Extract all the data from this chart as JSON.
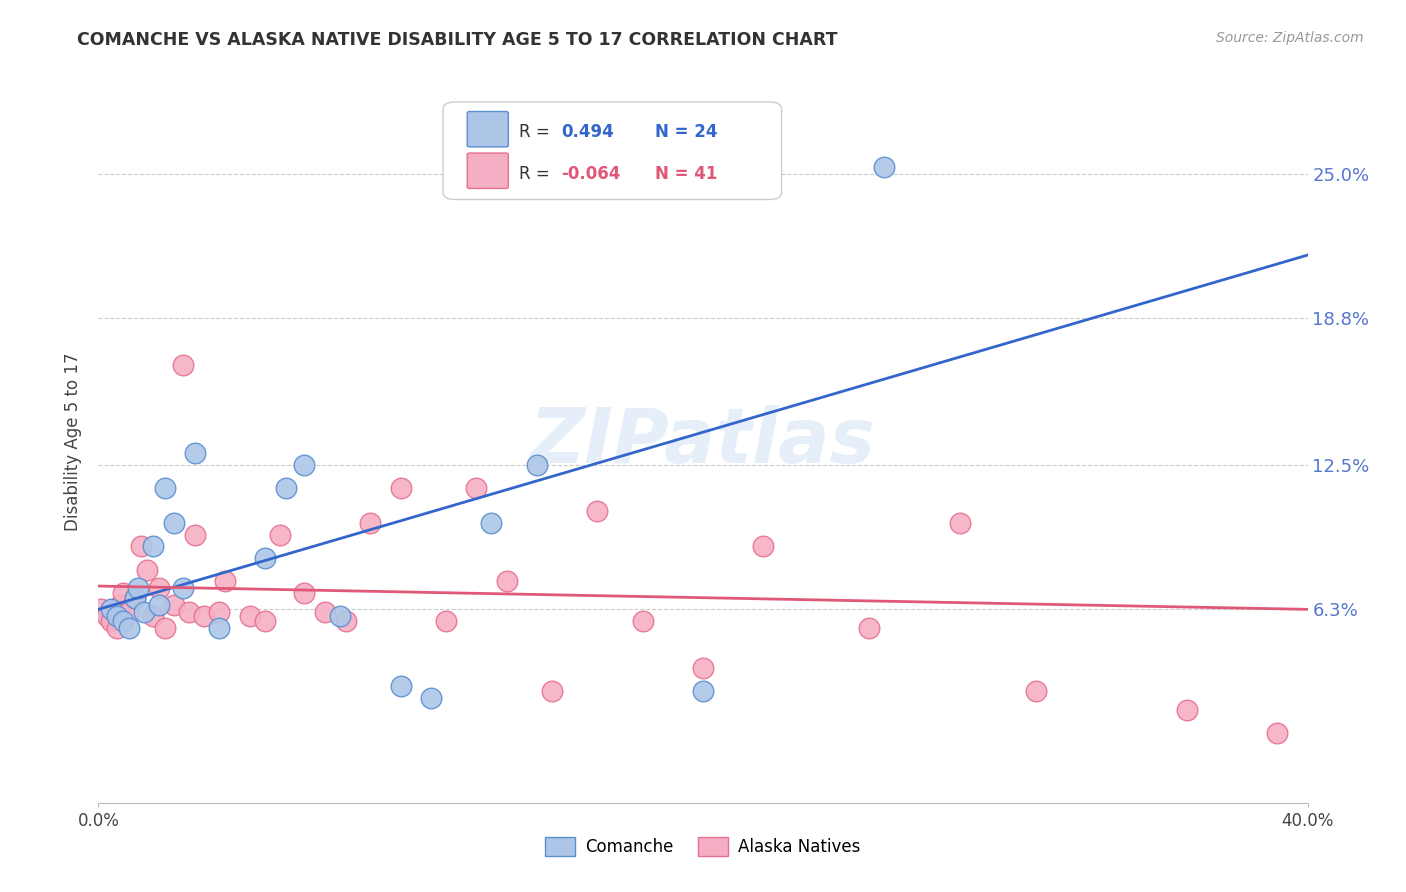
{
  "title": "COMANCHE VS ALASKA NATIVE DISABILITY AGE 5 TO 17 CORRELATION CHART",
  "source": "Source: ZipAtlas.com",
  "ylabel": "Disability Age 5 to 17",
  "xmin": 0.0,
  "xmax": 0.4,
  "ymin": -0.02,
  "ymax": 0.29,
  "ytick_values": [
    0.063,
    0.125,
    0.188,
    0.25
  ],
  "ytick_labels": [
    "6.3%",
    "12.5%",
    "18.8%",
    "25.0%"
  ],
  "xtick_values": [
    0.0,
    0.4
  ],
  "xtick_labels": [
    "0.0%",
    "40.0%"
  ],
  "comanche_color": "#adc6e8",
  "alaska_color": "#f5afc4",
  "comanche_edge": "#5b8fcf",
  "alaska_edge": "#e8708f",
  "regression_blue": "#3366cc",
  "regression_pink": "#e05878",
  "watermark": "ZIPatlas",
  "legend_r_label": "R =",
  "legend_blue_r_val": "0.494",
  "legend_blue_n": "N = 24",
  "legend_pink_r_val": "-0.064",
  "legend_pink_n": "N = 41",
  "comanche_label": "Comanche",
  "alaska_label": "Alaska Natives",
  "comanche_x": [
    0.004,
    0.006,
    0.008,
    0.01,
    0.012,
    0.013,
    0.015,
    0.018,
    0.02,
    0.022,
    0.025,
    0.028,
    0.032,
    0.04,
    0.055,
    0.062,
    0.068,
    0.08,
    0.1,
    0.11,
    0.13,
    0.145,
    0.2,
    0.26
  ],
  "comanche_y": [
    0.063,
    0.06,
    0.058,
    0.055,
    0.068,
    0.072,
    0.062,
    0.09,
    0.065,
    0.115,
    0.1,
    0.072,
    0.13,
    0.055,
    0.085,
    0.115,
    0.125,
    0.06,
    0.03,
    0.025,
    0.1,
    0.125,
    0.028,
    0.253
  ],
  "alaska_x": [
    0.001,
    0.003,
    0.004,
    0.006,
    0.007,
    0.008,
    0.01,
    0.012,
    0.014,
    0.016,
    0.018,
    0.02,
    0.022,
    0.025,
    0.028,
    0.03,
    0.032,
    0.035,
    0.04,
    0.042,
    0.05,
    0.055,
    0.06,
    0.068,
    0.075,
    0.082,
    0.09,
    0.1,
    0.115,
    0.125,
    0.135,
    0.15,
    0.165,
    0.18,
    0.2,
    0.22,
    0.255,
    0.285,
    0.31,
    0.36,
    0.39
  ],
  "alaska_y": [
    0.063,
    0.06,
    0.058,
    0.055,
    0.065,
    0.07,
    0.062,
    0.068,
    0.09,
    0.08,
    0.06,
    0.072,
    0.055,
    0.065,
    0.168,
    0.062,
    0.095,
    0.06,
    0.062,
    0.075,
    0.06,
    0.058,
    0.095,
    0.07,
    0.062,
    0.058,
    0.1,
    0.115,
    0.058,
    0.115,
    0.075,
    0.028,
    0.105,
    0.058,
    0.038,
    0.09,
    0.055,
    0.1,
    0.028,
    0.02,
    0.01
  ],
  "blue_line_x": [
    0.0,
    0.4
  ],
  "blue_line_y": [
    0.063,
    0.215
  ],
  "pink_line_x": [
    0.0,
    0.4
  ],
  "pink_line_y": [
    0.073,
    0.063
  ]
}
